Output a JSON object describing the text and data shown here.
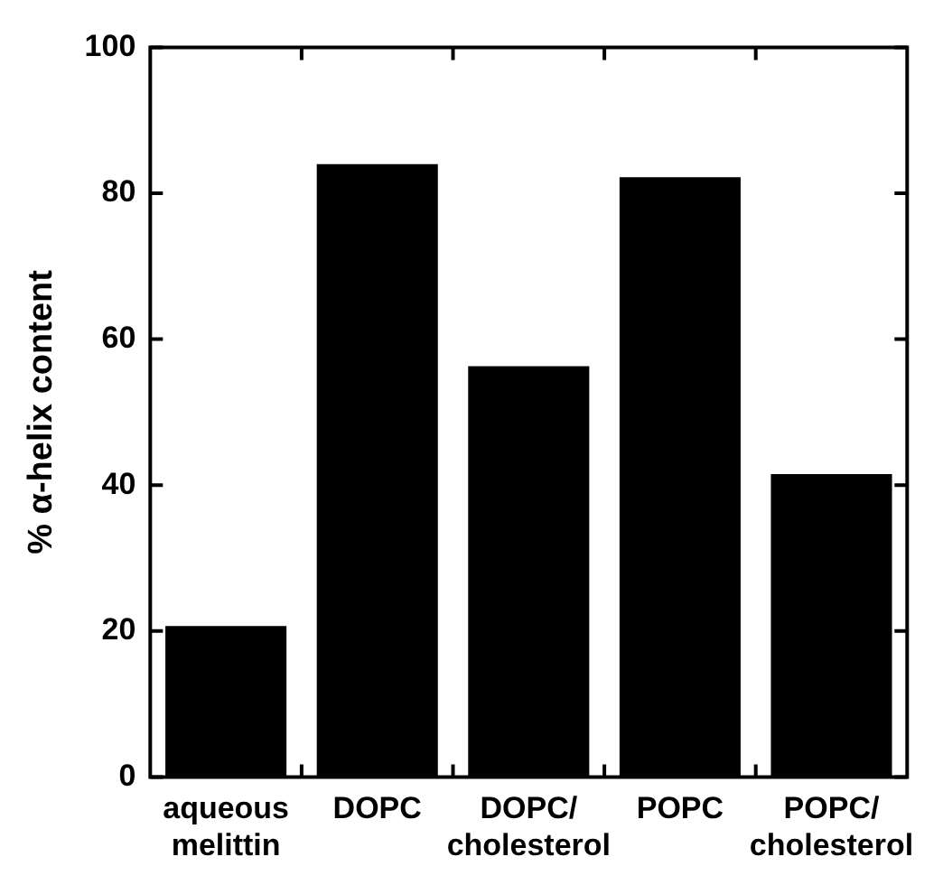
{
  "chart_data": {
    "type": "bar",
    "ylabel": "% α-helix content",
    "categories": [
      "aqueous melittin",
      "DOPC",
      "DOPC/cholesterol",
      "POPC",
      "POPC/cholesterol"
    ],
    "values": [
      20.7,
      84.0,
      56.3,
      82.2,
      41.5
    ],
    "color": "#000000",
    "ylim": [
      0,
      100
    ],
    "yticks": [
      0,
      20,
      40,
      60,
      80,
      100
    ],
    "grid": false,
    "legend": false
  }
}
